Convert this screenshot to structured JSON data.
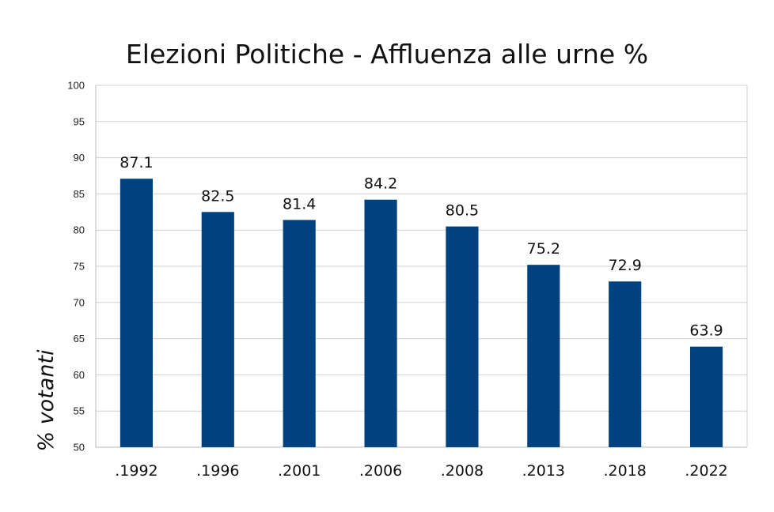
{
  "chart_data": {
    "type": "bar",
    "title": "Elezioni Politiche - Affluenza alle urne %",
    "xlabel": "",
    "ylabel": "% votanti",
    "categories": [
      ".1992",
      ".1996",
      ".2001",
      ".2006",
      ".2008",
      ".2013",
      ".2018",
      ".2022"
    ],
    "values": [
      87.1,
      82.5,
      81.4,
      84.2,
      80.5,
      75.2,
      72.9,
      63.9
    ],
    "data_labels": [
      "87.1",
      "82.5",
      "81.4",
      "84.2",
      "80.5",
      "75.2",
      "72.9",
      "63.9"
    ],
    "ylim": [
      50,
      100
    ],
    "yticks": [
      50,
      55,
      60,
      65,
      70,
      75,
      80,
      85,
      90,
      95,
      100
    ],
    "grid": true,
    "legend": "none",
    "bar_color": "#00427f",
    "grid_color": "#d0d0d0",
    "axis_color": "#b8b8b8"
  }
}
